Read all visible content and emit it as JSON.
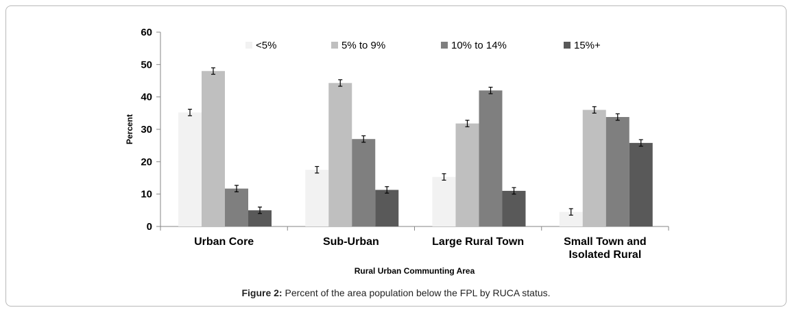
{
  "chart_data": {
    "type": "bar",
    "title": "",
    "xlabel": "Rural Urban Communting Area",
    "ylabel": "Percent",
    "ylim": [
      0,
      60
    ],
    "yticks": [
      0,
      10,
      20,
      30,
      40,
      50,
      60
    ],
    "grid": false,
    "legend_position": "top",
    "error_bars": true,
    "categories": [
      [
        "Urban Core"
      ],
      [
        "Sub-Urban"
      ],
      [
        "Large Rural Town"
      ],
      [
        "Small Town and",
        "Isolated Rural"
      ]
    ],
    "series": [
      {
        "name": "<5%",
        "color": "#f2f2f2",
        "values": [
          35.2,
          17.5,
          15.3,
          4.5
        ],
        "errors": [
          1.0,
          1.0,
          1.0,
          1.0
        ]
      },
      {
        "name": "5% to 9%",
        "color": "#bfbfbf",
        "values": [
          48.0,
          44.3,
          31.8,
          36.0
        ],
        "errors": [
          1.0,
          1.0,
          1.0,
          1.0
        ]
      },
      {
        "name": "10% to 14%",
        "color": "#7f7f7f",
        "values": [
          11.7,
          27.0,
          42.0,
          33.8
        ],
        "errors": [
          1.0,
          1.0,
          1.0,
          1.0
        ]
      },
      {
        "name": "15%+",
        "color": "#595959",
        "values": [
          5.0,
          11.3,
          11.0,
          25.8
        ],
        "errors": [
          1.0,
          1.0,
          1.0,
          1.0
        ]
      }
    ]
  },
  "caption": {
    "label": "Figure 2:",
    "text": " Percent of the area population below the FPL by RUCA status."
  }
}
